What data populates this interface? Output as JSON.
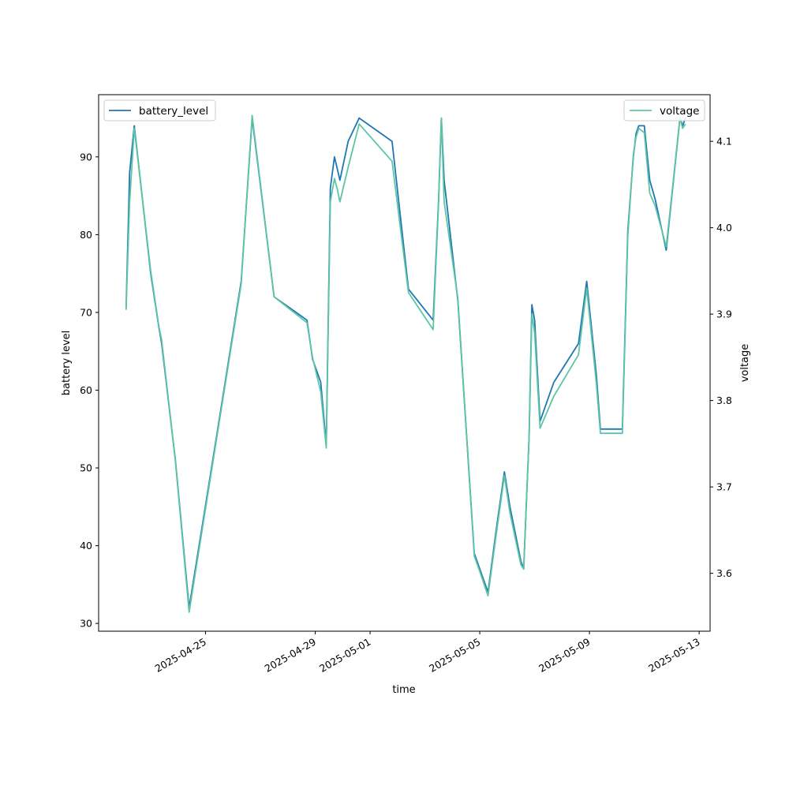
{
  "chart_data": {
    "type": "line",
    "xlabel": "time",
    "ylabel_left": "battery level",
    "ylabel_right": "voltage",
    "x_ticks": [
      "2025-04-25",
      "2025-04-29",
      "2025-05-01",
      "2025-05-05",
      "2025-05-09",
      "2025-05-13"
    ],
    "x_tick_days": [
      3,
      7,
      9,
      13,
      17,
      21
    ],
    "y_left_ticks": [
      "30",
      "40",
      "50",
      "60",
      "70",
      "80",
      "90"
    ],
    "y_left_values": [
      30,
      40,
      50,
      60,
      70,
      80,
      90
    ],
    "y_right_ticks": [
      "3.6",
      "3.7",
      "3.8",
      "3.9",
      "4.0",
      "4.1"
    ],
    "y_right_values": [
      3.6,
      3.7,
      3.8,
      3.9,
      4.0,
      4.1
    ],
    "xlim_days": [
      -0.9,
      21.4
    ],
    "ylim_left": [
      29.0,
      98.0
    ],
    "ylim_right": [
      3.533,
      4.154
    ],
    "legend_left": {
      "label": "battery_level",
      "placement": "upper left"
    },
    "legend_right": {
      "label": "voltage",
      "placement": "upper right"
    },
    "series": [
      {
        "name": "battery_level",
        "axis": "left",
        "color": "#1f77b4",
        "x": [
          0.1,
          0.23,
          0.4,
          1.0,
          1.3,
          1.4,
          1.9,
          2.4,
          3.4,
          4.3,
          4.7,
          5.5,
          6.3,
          6.7,
          6.9,
          7.2,
          7.4,
          7.55,
          7.7,
          7.8,
          7.9,
          8.2,
          8.6,
          9.8,
          10.4,
          11.3,
          11.5,
          11.6,
          11.7,
          12.2,
          12.8,
          13.0,
          13.3,
          13.6,
          13.9,
          14.1,
          14.5,
          14.6,
          14.8,
          14.9,
          15.0,
          15.2,
          15.7,
          16.6,
          16.9,
          17.25,
          17.4,
          18.2,
          18.4,
          18.6,
          18.7,
          18.8,
          19.0,
          19.2,
          19.4,
          19.8,
          20.3,
          20.4,
          20.5
        ],
        "values": [
          70.5,
          88,
          94,
          75,
          68,
          66,
          51,
          32,
          54,
          74,
          95,
          72,
          70,
          69,
          64,
          61,
          53,
          86,
          90,
          88.5,
          87,
          92,
          95,
          92,
          73,
          69,
          84.5,
          95,
          87,
          71.5,
          39,
          37,
          34,
          42,
          49.5,
          45,
          38,
          37,
          54,
          71,
          69,
          56,
          61,
          66,
          74,
          62,
          55,
          55,
          80.5,
          90,
          93,
          94,
          94,
          87,
          84.5,
          78,
          95,
          94,
          95
        ]
      },
      {
        "name": "voltage",
        "axis": "right",
        "color": "#5ec4a6",
        "x": [
          0.1,
          0.23,
          0.4,
          1.0,
          1.3,
          1.4,
          1.9,
          2.4,
          3.4,
          4.3,
          4.7,
          5.5,
          6.3,
          6.7,
          6.9,
          7.2,
          7.4,
          7.55,
          7.7,
          7.8,
          7.9,
          8.2,
          8.6,
          9.8,
          10.4,
          11.3,
          11.5,
          11.6,
          11.7,
          12.2,
          12.8,
          13.0,
          13.3,
          13.6,
          13.9,
          14.1,
          14.5,
          14.6,
          14.8,
          14.9,
          15.0,
          15.2,
          15.7,
          16.6,
          16.9,
          17.25,
          17.4,
          18.2,
          18.4,
          18.6,
          18.7,
          18.8,
          19.0,
          19.2,
          19.4,
          19.8,
          20.3,
          20.4,
          20.5
        ],
        "values": [
          3.905,
          4.03,
          4.115,
          3.95,
          3.885,
          3.87,
          3.73,
          3.555,
          3.755,
          3.935,
          4.13,
          3.92,
          3.9,
          3.89,
          3.85,
          3.81,
          3.745,
          4.03,
          4.057,
          4.045,
          4.03,
          4.07,
          4.12,
          4.077,
          3.925,
          3.882,
          4.03,
          4.127,
          4.03,
          3.918,
          3.62,
          3.602,
          3.574,
          3.645,
          3.713,
          3.67,
          3.61,
          3.605,
          3.758,
          3.9,
          3.878,
          3.768,
          3.805,
          3.853,
          3.93,
          3.82,
          3.762,
          3.762,
          3.99,
          4.085,
          4.105,
          4.115,
          4.11,
          4.04,
          4.025,
          3.978,
          4.127,
          4.115,
          4.12
        ]
      }
    ]
  }
}
